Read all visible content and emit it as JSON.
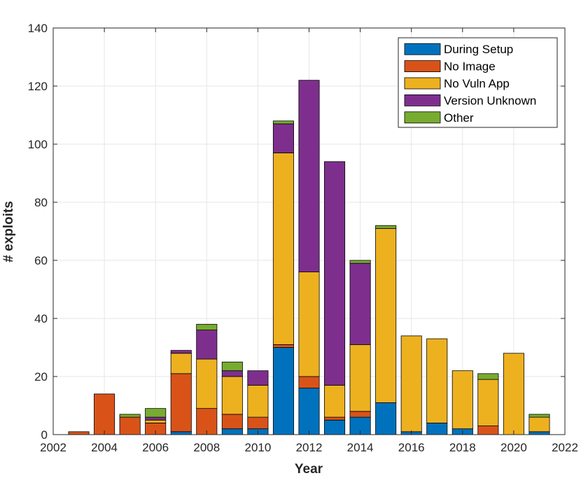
{
  "chart_data": {
    "type": "bar",
    "stacked": true,
    "xlabel": "Year",
    "ylabel": "# exploits",
    "xlim": [
      2002,
      2022
    ],
    "ylim": [
      0,
      140
    ],
    "xticks": [
      2002,
      2004,
      2006,
      2008,
      2010,
      2012,
      2014,
      2016,
      2018,
      2020,
      2022
    ],
    "yticks": [
      0,
      20,
      40,
      60,
      80,
      100,
      120,
      140
    ],
    "grid": true,
    "legend_position": "top-right",
    "categories": [
      2003,
      2004,
      2005,
      2006,
      2007,
      2008,
      2009,
      2010,
      2011,
      2012,
      2013,
      2014,
      2015,
      2016,
      2017,
      2018,
      2019,
      2020,
      2021
    ],
    "series": [
      {
        "name": "During Setup",
        "color": "#0072BD",
        "values": [
          0,
          0,
          0,
          0,
          1,
          0,
          2,
          2,
          30,
          16,
          5,
          6,
          11,
          1,
          4,
          2,
          0,
          0,
          1
        ]
      },
      {
        "name": "No Image",
        "color": "#D95319",
        "values": [
          1,
          14,
          6,
          4,
          20,
          9,
          5,
          4,
          1,
          4,
          1,
          2,
          0,
          0,
          0,
          0,
          3,
          0,
          0
        ]
      },
      {
        "name": "No Vuln App",
        "color": "#EDB120",
        "values": [
          0,
          0,
          0,
          1,
          7,
          17,
          13,
          11,
          66,
          36,
          11,
          23,
          60,
          33,
          29,
          20,
          16,
          28,
          5
        ]
      },
      {
        "name": "Version Unknown",
        "color": "#7E2F8E",
        "values": [
          0,
          0,
          0,
          1,
          1,
          10,
          2,
          5,
          10,
          66,
          77,
          28,
          0,
          0,
          0,
          0,
          0,
          0,
          0
        ]
      },
      {
        "name": "Other",
        "color": "#77AC30",
        "values": [
          0,
          0,
          1,
          3,
          0,
          2,
          3,
          0,
          1,
          0,
          0,
          1,
          1,
          0,
          0,
          0,
          2,
          0,
          1
        ]
      }
    ]
  }
}
